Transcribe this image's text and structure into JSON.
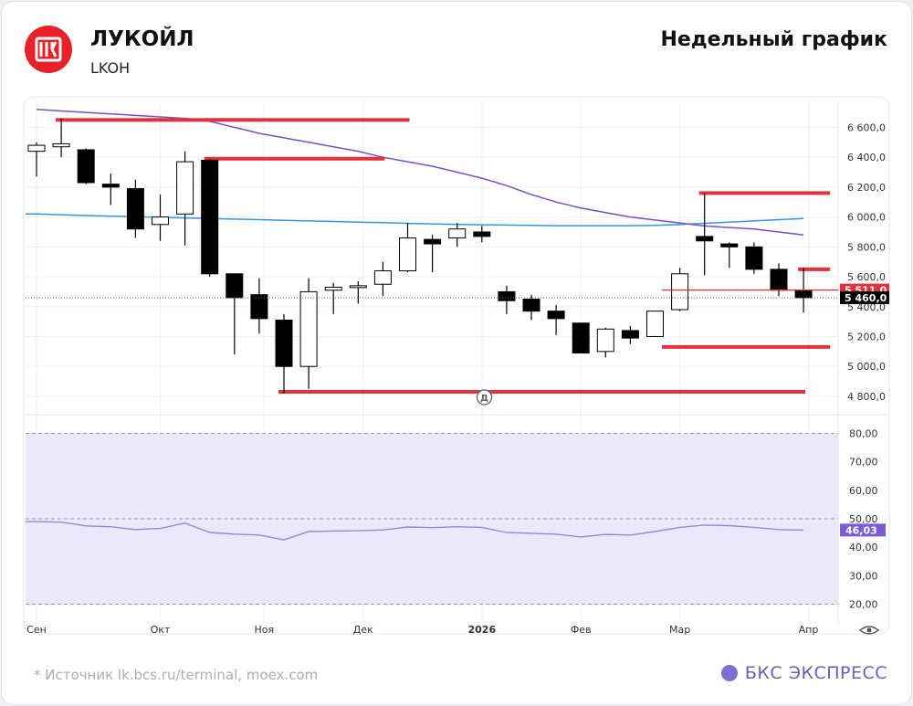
{
  "header": {
    "company": "ЛУКОЙЛ",
    "ticker": "LKOH",
    "chart_kind": "Недельный график"
  },
  "footer": {
    "source": "* Источник lk.bcs.ru/terminal, moex.com",
    "brand": "БКС ЭКСПРЕСС"
  },
  "colors": {
    "candle_up": "#ffffff",
    "candle_down": "#000000",
    "level_line": "#e8303c",
    "ma_purple": "#7a4fc4",
    "ma_blue": "#2f97e8",
    "rsi_line": "#9a86d6",
    "rsi_band": "#ece8fb"
  },
  "chart_data": [
    {
      "type": "candlestick",
      "timeframe": "weekly",
      "x_ticks": [
        "Сен",
        "Окт",
        "Ноя",
        "Дек",
        "2026",
        "Фев",
        "Мар",
        "Апр"
      ],
      "y_ticks": [
        "6 600,0",
        "6 400,0",
        "6 200,0",
        "6 000,0",
        "5 800,0",
        "5 600,0",
        "5 400,0",
        "5 200,0",
        "5 000,0",
        "4 800,0"
      ],
      "ylim": [
        4720,
        6780
      ],
      "grid": true,
      "candles": [
        {
          "o": 6440,
          "h": 6500,
          "l": 6270,
          "c": 6480
        },
        {
          "o": 6470,
          "h": 6660,
          "l": 6400,
          "c": 6490
        },
        {
          "o": 6450,
          "h": 6460,
          "l": 6220,
          "c": 6230
        },
        {
          "o": 6220,
          "h": 6290,
          "l": 6080,
          "c": 6200
        },
        {
          "o": 6190,
          "h": 6250,
          "l": 5860,
          "c": 5920
        },
        {
          "o": 5950,
          "h": 6150,
          "l": 5840,
          "c": 6000
        },
        {
          "o": 6020,
          "h": 6440,
          "l": 5810,
          "c": 6370
        },
        {
          "o": 6380,
          "h": 6390,
          "l": 5600,
          "c": 5620
        },
        {
          "o": 5620,
          "h": 5620,
          "l": 5080,
          "c": 5460
        },
        {
          "o": 5480,
          "h": 5590,
          "l": 5220,
          "c": 5320
        },
        {
          "o": 5310,
          "h": 5350,
          "l": 4820,
          "c": 5000
        },
        {
          "o": 5000,
          "h": 5590,
          "l": 4850,
          "c": 5500
        },
        {
          "o": 5510,
          "h": 5560,
          "l": 5350,
          "c": 5530
        },
        {
          "o": 5530,
          "h": 5570,
          "l": 5420,
          "c": 5540
        },
        {
          "o": 5550,
          "h": 5700,
          "l": 5470,
          "c": 5640
        },
        {
          "o": 5640,
          "h": 5960,
          "l": 5630,
          "c": 5860
        },
        {
          "o": 5850,
          "h": 5880,
          "l": 5630,
          "c": 5820
        },
        {
          "o": 5860,
          "h": 5960,
          "l": 5800,
          "c": 5920
        },
        {
          "o": 5900,
          "h": 5940,
          "l": 5830,
          "c": 5870
        },
        {
          "o": 5500,
          "h": 5540,
          "l": 5350,
          "c": 5440
        },
        {
          "o": 5450,
          "h": 5480,
          "l": 5310,
          "c": 5370
        },
        {
          "o": 5370,
          "h": 5410,
          "l": 5210,
          "c": 5320
        },
        {
          "o": 5290,
          "h": 5290,
          "l": 5090,
          "c": 5090
        },
        {
          "o": 5100,
          "h": 5260,
          "l": 5060,
          "c": 5250
        },
        {
          "o": 5240,
          "h": 5270,
          "l": 5150,
          "c": 5190
        },
        {
          "o": 5200,
          "h": 5370,
          "l": 5200,
          "c": 5370
        },
        {
          "o": 5380,
          "h": 5660,
          "l": 5370,
          "c": 5620
        },
        {
          "o": 5870,
          "h": 6160,
          "l": 5610,
          "c": 5840
        },
        {
          "o": 5820,
          "h": 5830,
          "l": 5660,
          "c": 5800
        },
        {
          "o": 5800,
          "h": 5830,
          "l": 5620,
          "c": 5650
        },
        {
          "o": 5650,
          "h": 5690,
          "l": 5470,
          "c": 5510
        },
        {
          "o": 5510,
          "h": 5660,
          "l": 5360,
          "c": 5460
        }
      ],
      "ma_long": [
        6720,
        6710,
        6700,
        6690,
        6680,
        6670,
        6660,
        6640,
        6600,
        6560,
        6530,
        6500,
        6470,
        6440,
        6400,
        6370,
        6340,
        6300,
        6260,
        6210,
        6150,
        6100,
        6060,
        6030,
        6000,
        5980,
        5960,
        5940,
        5930,
        5920,
        5900,
        5880
      ],
      "ma_short": [
        6020,
        6015,
        6010,
        6006,
        6002,
        5998,
        5994,
        5990,
        5986,
        5982,
        5978,
        5974,
        5970,
        5966,
        5962,
        5958,
        5954,
        5950,
        5948,
        5946,
        5944,
        5942,
        5942,
        5942,
        5942,
        5944,
        5950,
        5958,
        5966,
        5974,
        5982,
        5990
      ],
      "levels": [
        {
          "value": 6650,
          "from": 1,
          "to": 15
        },
        {
          "value": 6390,
          "from": 7,
          "to": 14
        },
        {
          "value": 6160,
          "from": 27,
          "to": 32
        },
        {
          "value": 5650,
          "from": 31,
          "to": 32
        },
        {
          "value": 5130,
          "from": 25.5,
          "to": 32
        },
        {
          "value": 4830,
          "from": 10,
          "to": 31
        }
      ],
      "price_labels": [
        {
          "value": 5511,
          "text": "5 511,0",
          "style": "red"
        },
        {
          "value": 5460,
          "text": "5 460,0",
          "style": "black"
        }
      ],
      "current_price": 5460,
      "dividend_marker": "Д"
    },
    {
      "type": "line",
      "indicator": "RSI",
      "y_ticks": [
        "80,00",
        "70,00",
        "60,00",
        "50,00",
        "40,00",
        "30,00",
        "20,00"
      ],
      "ylim": [
        16,
        84
      ],
      "band": [
        20,
        80
      ],
      "reference_lines": [
        80,
        50,
        20
      ],
      "values": [
        49,
        48.8,
        47.5,
        47.2,
        46.2,
        46.6,
        48.5,
        45.2,
        44.6,
        44.3,
        42.6,
        45.5,
        45.7,
        45.8,
        46.1,
        47.1,
        46.9,
        47.2,
        47.0,
        45.2,
        44.9,
        44.6,
        43.6,
        44.5,
        44.3,
        45.5,
        47.0,
        47.8,
        47.6,
        47.0,
        46.2,
        46.03
      ],
      "last_value_label": "46,03"
    }
  ]
}
